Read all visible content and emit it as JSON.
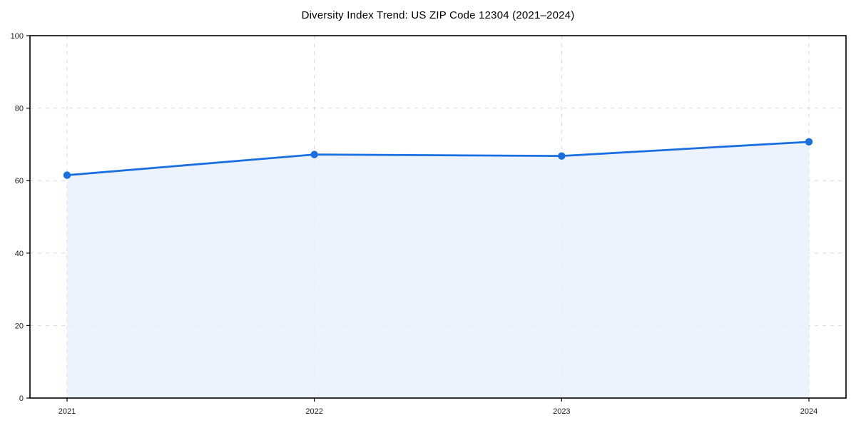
{
  "chart_data": {
    "type": "area",
    "title": "Diversity Index Trend: US ZIP Code 12304 (2021–2024)",
    "x": [
      2021,
      2022,
      2023,
      2024
    ],
    "series": [
      {
        "name": "Diversity Index",
        "values": [
          61.5,
          67.2,
          66.8,
          70.7
        ]
      }
    ],
    "xlabel": "",
    "ylabel": "",
    "ylim": [
      0,
      100
    ],
    "yticks": [
      0,
      20,
      40,
      60,
      80,
      100
    ],
    "xtick_labels": [
      "2021",
      "2022",
      "2023",
      "2024"
    ],
    "grid": true,
    "grid_style": "dashed",
    "legend": "none",
    "colors": {
      "line": "#1a6fe0",
      "marker": "#1a6fe0",
      "fill": "rgba(233,240,253,0.82)",
      "gridline": "#d7d7d7",
      "axis_frame": "#000000",
      "tick_label": "#1a1a1a",
      "title": "#000000",
      "background": "#ffffff"
    }
  }
}
